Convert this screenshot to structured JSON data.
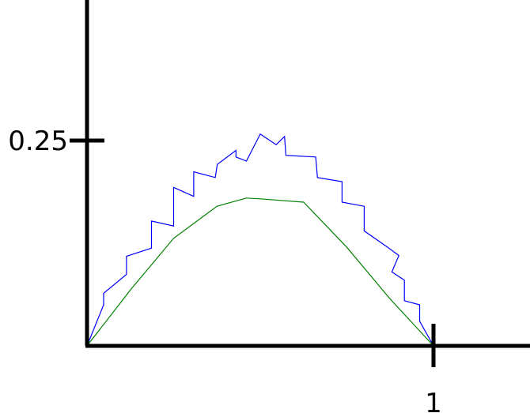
{
  "chart_data": {
    "type": "line",
    "title": "",
    "xlabel": "",
    "ylabel": "",
    "xlim": [
      0,
      1.2
    ],
    "ylim": [
      0,
      0.39
    ],
    "grid": false,
    "legend": "none",
    "x_ticks": [
      {
        "value": 1,
        "label": "1"
      }
    ],
    "y_ticks": [
      {
        "value": 0.25,
        "label": "0.25"
      }
    ],
    "series": [
      {
        "color": "#0000ff",
        "points": [
          [
            0.0,
            0.0
          ],
          [
            0.048,
            0.05
          ],
          [
            0.048,
            0.064
          ],
          [
            0.114,
            0.087
          ],
          [
            0.114,
            0.109
          ],
          [
            0.186,
            0.119
          ],
          [
            0.186,
            0.152
          ],
          [
            0.25,
            0.146
          ],
          [
            0.25,
            0.193
          ],
          [
            0.308,
            0.182
          ],
          [
            0.308,
            0.212
          ],
          [
            0.37,
            0.205
          ],
          [
            0.376,
            0.221
          ],
          [
            0.43,
            0.238
          ],
          [
            0.43,
            0.23
          ],
          [
            0.46,
            0.225
          ],
          [
            0.5,
            0.258
          ],
          [
            0.546,
            0.245
          ],
          [
            0.57,
            0.255
          ],
          [
            0.574,
            0.232
          ],
          [
            0.66,
            0.23
          ],
          [
            0.665,
            0.205
          ],
          [
            0.736,
            0.2
          ],
          [
            0.736,
            0.175
          ],
          [
            0.8,
            0.17
          ],
          [
            0.8,
            0.14
          ],
          [
            0.868,
            0.12
          ],
          [
            0.9,
            0.11
          ],
          [
            0.88,
            0.09
          ],
          [
            0.916,
            0.08
          ],
          [
            0.916,
            0.055
          ],
          [
            0.96,
            0.05
          ],
          [
            0.96,
            0.03
          ],
          [
            1.0,
            0.0
          ]
        ]
      },
      {
        "color": "#008000",
        "points": [
          [
            0.0,
            0.0
          ],
          [
            0.125,
            0.068
          ],
          [
            0.25,
            0.131
          ],
          [
            0.375,
            0.17
          ],
          [
            0.46,
            0.18
          ],
          [
            0.5,
            0.179
          ],
          [
            0.625,
            0.175
          ],
          [
            0.75,
            0.12
          ],
          [
            0.875,
            0.057
          ],
          [
            1.0,
            0.0
          ]
        ]
      }
    ]
  }
}
